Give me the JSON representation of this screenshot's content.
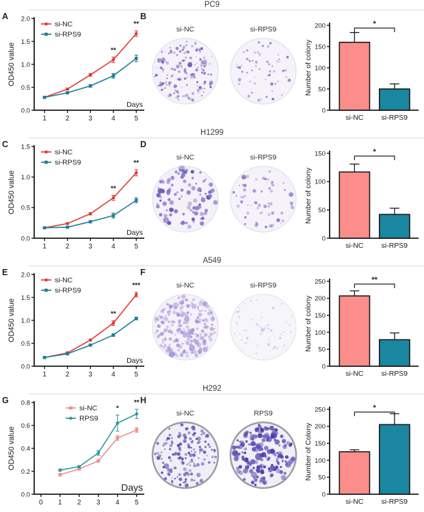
{
  "sections": [
    {
      "title": "PC9",
      "line_letter": "A",
      "colony_letter": "B",
      "dishes": [
        {
          "label": "si-NC",
          "colonies": 155,
          "size": [
            0.8,
            2.4
          ],
          "color": "#7560c1",
          "color2": "#9b8ad2",
          "fill": "#f4f2f8",
          "rim": "#ddd9e5",
          "rim_width": 1,
          "seed": 11
        },
        {
          "label": "si-RPS9",
          "colonies": 58,
          "size": [
            0.8,
            2.1
          ],
          "color": "#7f6cc6",
          "color2": "#a396d6",
          "fill": "#f5f3f9",
          "rim": "#ddd9e5",
          "rim_width": 1,
          "seed": 22
        }
      ]
    },
    {
      "title": "H1299",
      "line_letter": "C",
      "colony_letter": "D",
      "dishes": [
        {
          "label": "si-NC",
          "colonies": 95,
          "size": [
            1.2,
            3.4
          ],
          "color": "#6a58bb",
          "color2": "#8f7fce",
          "fill": "#f4f2f8",
          "rim": "#ddd9e5",
          "rim_width": 1,
          "seed": 33
        },
        {
          "label": "si-RPS9",
          "colonies": 62,
          "size": [
            0.9,
            2.6
          ],
          "color": "#8a78cc",
          "color2": "#ab9dda",
          "fill": "#f5f3f9",
          "rim": "#ddd9e5",
          "rim_width": 1,
          "seed": 44
        }
      ]
    },
    {
      "title": "A549",
      "line_letter": "E",
      "colony_letter": "F",
      "dishes": [
        {
          "label": "si-NC",
          "colonies": 220,
          "size": [
            1.2,
            3.0
          ],
          "color": "#a795d8",
          "color2": "#bdaee2",
          "fill": "#f4f2f8",
          "rim": "#ddd9e5",
          "rim_width": 1,
          "seed": 55
        },
        {
          "label": "si-RPS9",
          "colonies": 48,
          "size": [
            0.8,
            1.9
          ],
          "color": "#c6bae5",
          "color2": "#d4cbec",
          "fill": "#f6f5fa",
          "rim": "#e2dfe9",
          "rim_width": 1,
          "seed": 66
        }
      ]
    },
    {
      "title": "H292",
      "line_letter": "G",
      "colony_letter": "H",
      "dishes": [
        {
          "label": "si-NC",
          "colonies": 150,
          "size": [
            1.0,
            2.7
          ],
          "color": "#5445af",
          "color2": "#7163be",
          "fill": "#f1eff5",
          "rim": "#9c9ca4",
          "rim_width": 2.5,
          "seed": 77
        },
        {
          "label": "RPS9",
          "colonies": 175,
          "size": [
            1.3,
            3.8
          ],
          "color": "#4b3cab",
          "color2": "#6a5cbd",
          "fill": "#f1eff5",
          "rim": "#9c9ca4",
          "rim_width": 2.5,
          "seed": 88
        }
      ]
    }
  ],
  "chart_data": [
    {
      "panel": "A",
      "group": "PC9",
      "type": "line",
      "xlabel": "Days",
      "ylabel": "OD450 value",
      "x": [
        1,
        2,
        3,
        4,
        5
      ],
      "xticks": [
        1,
        2,
        3,
        4,
        5
      ],
      "xlim": [
        0.55,
        5.35
      ],
      "ylim": [
        0,
        2
      ],
      "yticks": [
        0,
        0.5,
        1,
        1.5,
        2
      ],
      "legend_dx": 10,
      "days_size": 10.5,
      "series": [
        {
          "name": "si-NC",
          "color": "#e03a31",
          "marker": "circle",
          "values": [
            0.28,
            0.46,
            0.77,
            1.1,
            1.67
          ],
          "errors": [
            0.02,
            0.02,
            0.03,
            0.06,
            0.06
          ]
        },
        {
          "name": "si-RPS9",
          "color": "#1c7f99",
          "marker": "square",
          "values": [
            0.28,
            0.38,
            0.53,
            0.75,
            1.13
          ],
          "errors": [
            0.02,
            0.02,
            0.03,
            0.05,
            0.07
          ]
        }
      ],
      "significance": [
        {
          "x": 4,
          "label": "**"
        },
        {
          "x": 5,
          "label": "**"
        }
      ]
    },
    {
      "panel": "B",
      "group": "PC9",
      "type": "bar",
      "categories": [
        "si-NC",
        "si-RPS9"
      ],
      "values": [
        160,
        50
      ],
      "errors": [
        23,
        12
      ],
      "colors": [
        "#fb8d8a",
        "#1b86a0"
      ],
      "ylabel": "Number of colony",
      "ylim": [
        0,
        200
      ],
      "yticks": [
        0,
        50,
        100,
        150,
        200
      ],
      "significance": "*"
    },
    {
      "panel": "C",
      "group": "H1299",
      "type": "line",
      "xlabel": "Days",
      "ylabel": "OD450 value",
      "x": [
        1,
        2,
        3,
        4,
        5
      ],
      "xticks": [
        1,
        2,
        3,
        4,
        5
      ],
      "xlim": [
        0.55,
        5.35
      ],
      "ylim": [
        0,
        1.5
      ],
      "yticks": [
        0,
        0.5,
        1,
        1.5
      ],
      "legend_dx": 10,
      "days_size": 10.5,
      "series": [
        {
          "name": "si-NC",
          "color": "#e03a31",
          "marker": "circle",
          "values": [
            0.17,
            0.24,
            0.4,
            0.66,
            1.07
          ],
          "errors": [
            0.01,
            0.01,
            0.02,
            0.04,
            0.05
          ]
        },
        {
          "name": "si-RPS9",
          "color": "#1c7f99",
          "marker": "square",
          "values": [
            0.17,
            0.18,
            0.27,
            0.37,
            0.62
          ],
          "errors": [
            0.01,
            0.01,
            0.02,
            0.04,
            0.04
          ]
        }
      ],
      "significance": [
        {
          "x": 4,
          "label": "**"
        },
        {
          "x": 5,
          "label": "**"
        }
      ]
    },
    {
      "panel": "D",
      "group": "H1299",
      "type": "bar",
      "categories": [
        "si-NC",
        "si-RPS9"
      ],
      "values": [
        117,
        42
      ],
      "errors": [
        14,
        11
      ],
      "colors": [
        "#fb8d8a",
        "#1b86a0"
      ],
      "ylabel": "Number of colony",
      "ylim": [
        0,
        150
      ],
      "yticks": [
        0,
        50,
        100,
        150
      ],
      "significance": "*"
    },
    {
      "panel": "E",
      "group": "A549",
      "type": "line",
      "xlabel": "Days",
      "ylabel": "OD450 value",
      "x": [
        1,
        2,
        3,
        4,
        5
      ],
      "xticks": [
        1,
        2,
        3,
        4,
        5
      ],
      "xlim": [
        0.55,
        5.35
      ],
      "ylim": [
        0,
        2
      ],
      "yticks": [
        0,
        0.5,
        1,
        1.5,
        2
      ],
      "legend_dx": 10,
      "days_size": 10.5,
      "series": [
        {
          "name": "si-NC",
          "color": "#e03a31",
          "marker": "circle",
          "values": [
            0.19,
            0.29,
            0.57,
            0.94,
            1.56
          ],
          "errors": [
            0.01,
            0.02,
            0.02,
            0.05,
            0.05
          ]
        },
        {
          "name": "si-RPS9",
          "color": "#1c7f99",
          "marker": "square",
          "values": [
            0.19,
            0.27,
            0.46,
            0.68,
            1.04
          ],
          "errors": [
            0.01,
            0.01,
            0.02,
            0.03,
            0.03
          ]
        }
      ],
      "significance": [
        {
          "x": 4,
          "label": "**"
        },
        {
          "x": 5,
          "label": "***"
        }
      ]
    },
    {
      "panel": "F",
      "group": "A549",
      "type": "bar",
      "categories": [
        "si-NC",
        "si-RPS9"
      ],
      "values": [
        207,
        78
      ],
      "errors": [
        15,
        20
      ],
      "colors": [
        "#fb8d8a",
        "#1b86a0"
      ],
      "ylabel": "Number of colony",
      "ylim": [
        0,
        250
      ],
      "yticks": [
        0,
        50,
        100,
        150,
        200,
        250
      ],
      "significance": "**"
    },
    {
      "panel": "G",
      "group": "H292",
      "type": "line",
      "xlabel": "Days",
      "ylabel": "OD450 value",
      "x": [
        1,
        2,
        3,
        4,
        5
      ],
      "xticks": [
        0,
        1,
        2,
        3,
        4,
        5
      ],
      "xlim": [
        -0.35,
        5.4
      ],
      "ylim": [
        0,
        0.8
      ],
      "yticks": [
        0,
        0.2,
        0.4,
        0.6,
        0.8
      ],
      "legend_dx": 46,
      "days_size": 14,
      "series": [
        {
          "name": "si-NC",
          "color": "#f28c8c",
          "marker": "square",
          "values": [
            0.17,
            0.22,
            0.29,
            0.49,
            0.56
          ],
          "errors": [
            0.01,
            0.01,
            0.01,
            0.02,
            0.02
          ]
        },
        {
          "name": "RPS9",
          "color": "#2b9a9c",
          "marker": "circle",
          "values": [
            0.21,
            0.24,
            0.36,
            0.62,
            0.7
          ],
          "errors": [
            0.01,
            0.01,
            0.02,
            0.07,
            0.04
          ]
        }
      ],
      "significance": [
        {
          "x": 4,
          "label": "*"
        },
        {
          "x": 5,
          "label": "**"
        }
      ]
    },
    {
      "panel": "H",
      "group": "H292",
      "type": "bar",
      "categories": [
        "si-NC",
        "si-RPS9"
      ],
      "values": [
        125,
        205
      ],
      "errors": [
        6,
        32
      ],
      "colors": [
        "#fb8d8a",
        "#1b86a0"
      ],
      "ylabel": "Number of Colony",
      "ylim": [
        0,
        250
      ],
      "yticks": [
        0,
        50,
        100,
        150,
        200,
        250
      ],
      "significance": "*"
    }
  ]
}
